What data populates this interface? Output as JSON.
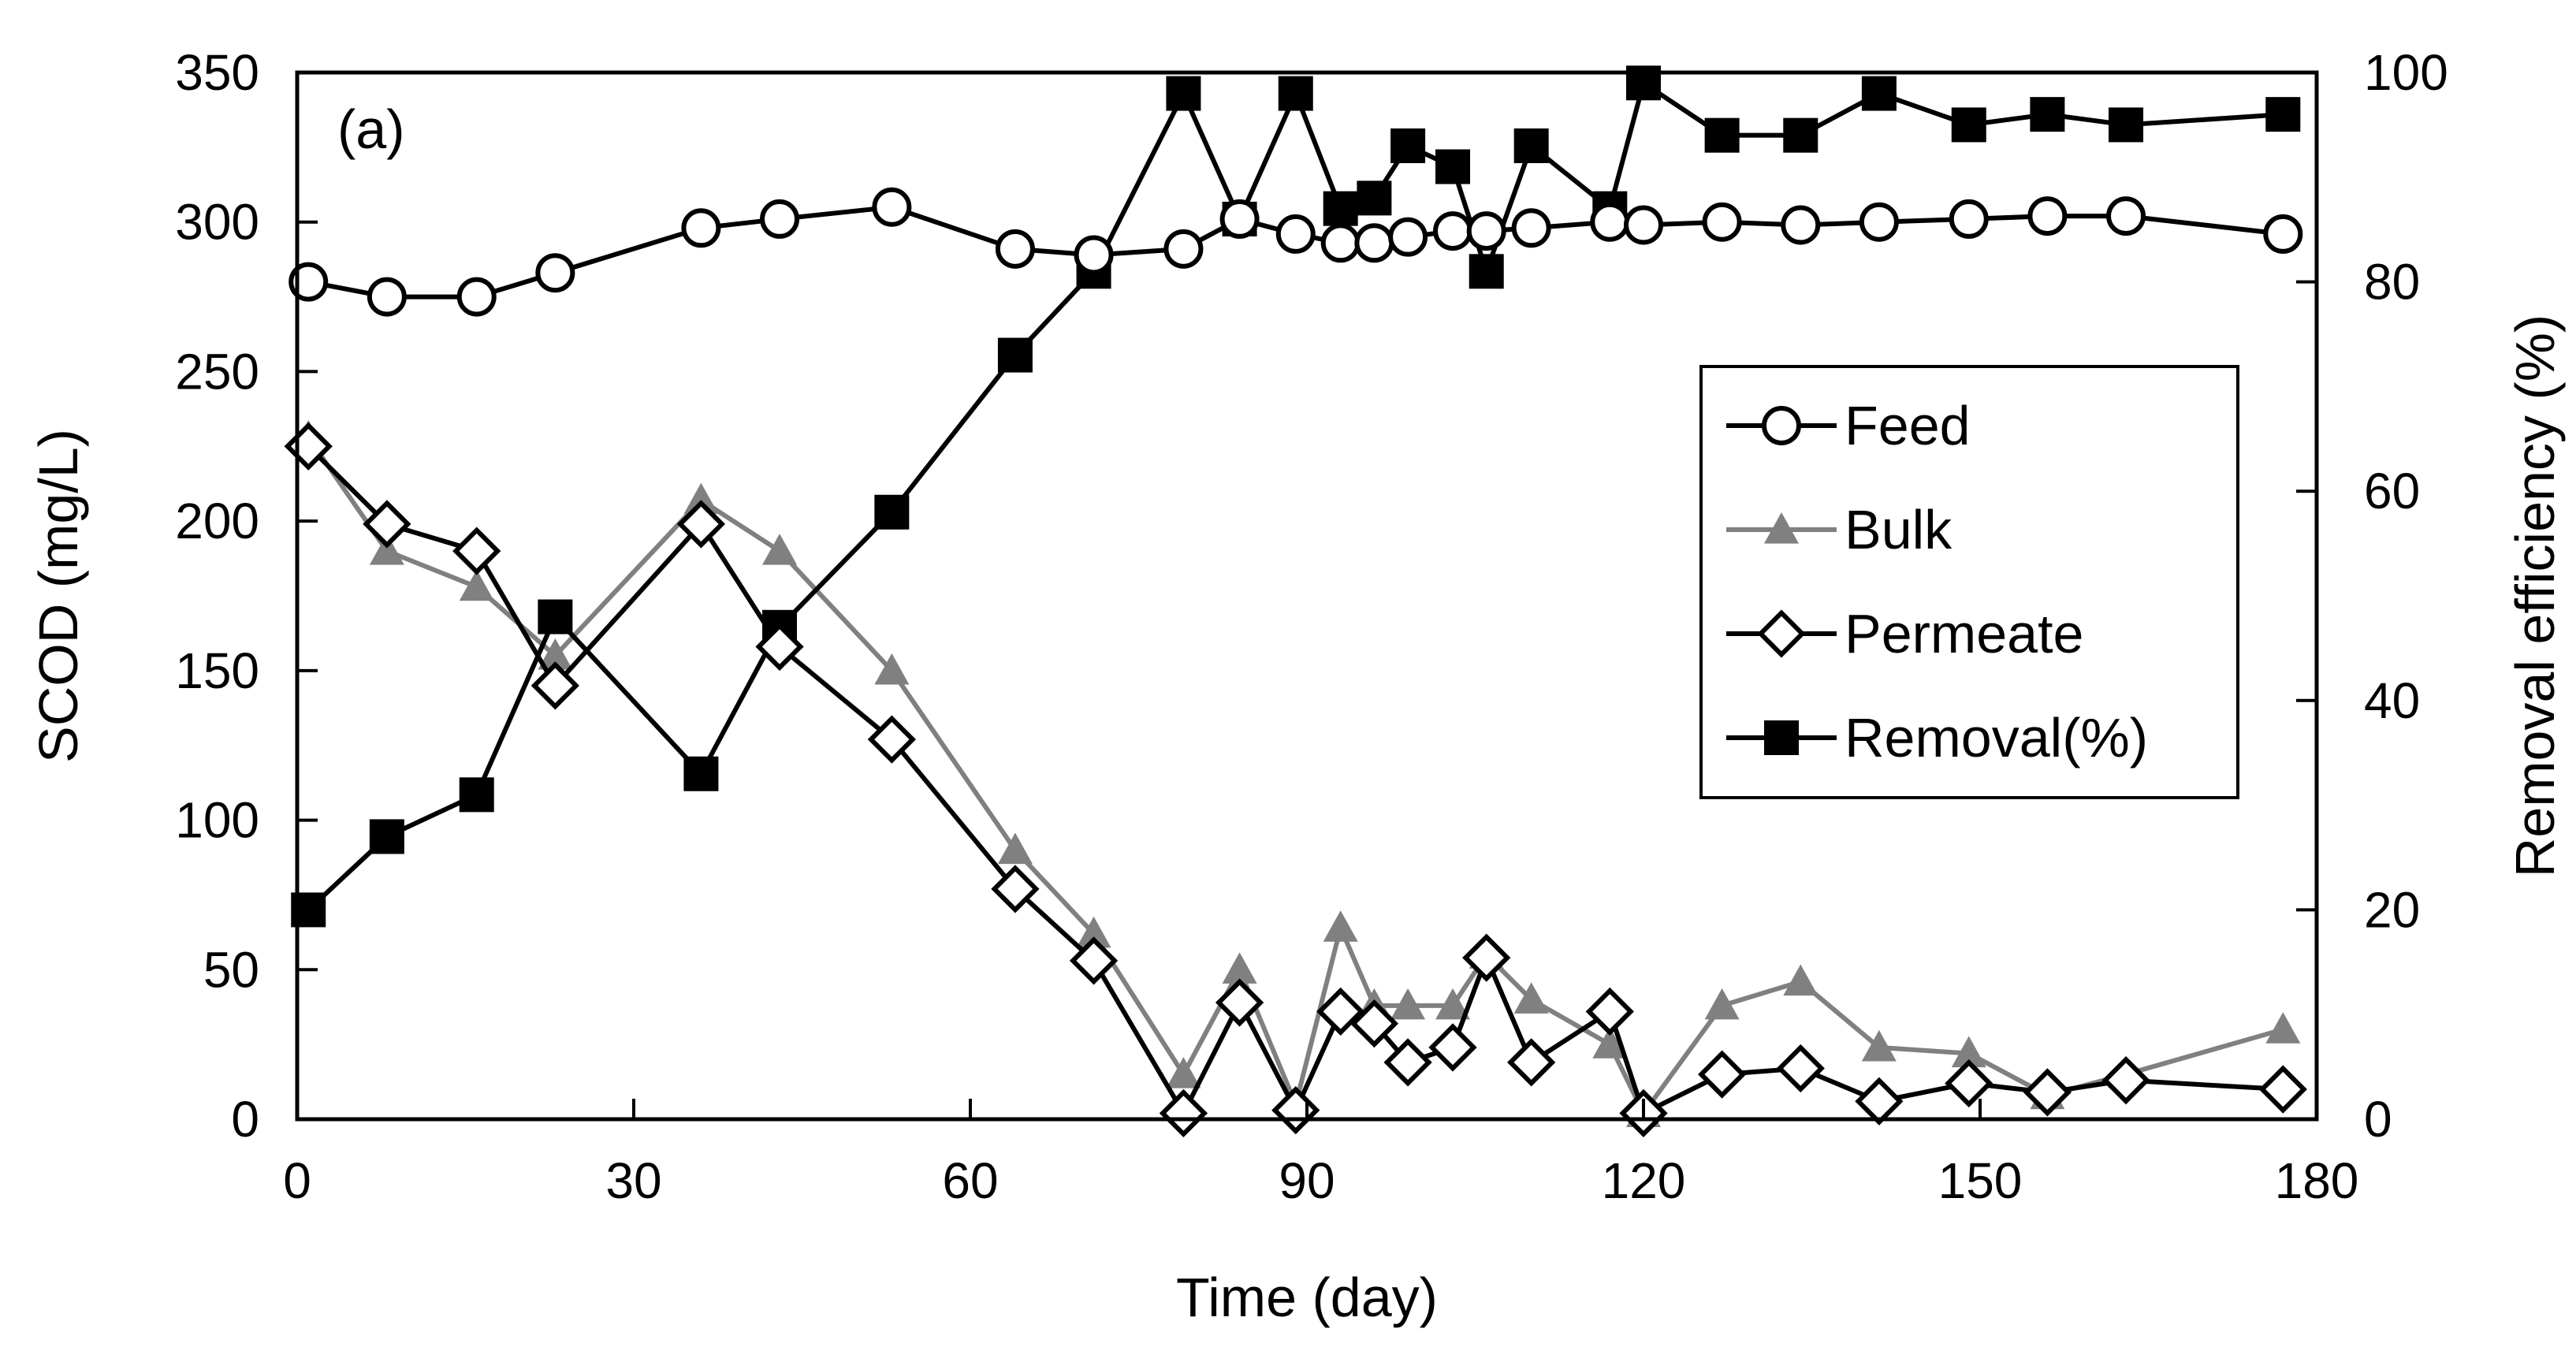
{
  "chart_data": {
    "type": "line",
    "panel_label": "(a)",
    "xlabel": "Time (day)",
    "ylabel": "SCOD (mg/L)",
    "y2label": "Removal efficiency (%)",
    "xlim": [
      0,
      180
    ],
    "ylim": [
      0,
      350
    ],
    "y2lim": [
      0,
      100
    ],
    "xticks": [
      "0",
      "30",
      "60",
      "90",
      "120",
      "150",
      "180"
    ],
    "yticks": [
      "0",
      "50",
      "100",
      "150",
      "200",
      "250",
      "300",
      "350"
    ],
    "y2ticks": [
      "0",
      "20",
      "40",
      "60",
      "80",
      "100"
    ],
    "grid": false,
    "legend_position": "center-right",
    "x": [
      1,
      8,
      16,
      23,
      36,
      43,
      53,
      64,
      71,
      79,
      84,
      89,
      93,
      96,
      99,
      103,
      106,
      110,
      117,
      120,
      127,
      134,
      141,
      149,
      156,
      163,
      177
    ],
    "series": [
      {
        "name": "Feed",
        "axis": "left",
        "marker": "open-circle",
        "color": "#000000",
        "values": [
          280,
          275,
          275,
          283,
          298,
          301,
          305,
          291,
          289,
          291,
          301,
          296,
          293,
          293,
          295,
          297,
          297,
          298,
          300,
          299,
          300,
          299,
          300,
          301,
          302,
          302,
          296
        ]
      },
      {
        "name": "Bulk",
        "axis": "left",
        "marker": "filled-triangle",
        "color": "#808080",
        "values": [
          228,
          190,
          178,
          155,
          207,
          190,
          150,
          90,
          62,
          15,
          50,
          5,
          64,
          38,
          38,
          38,
          55,
          40,
          25,
          2,
          38,
          46,
          24,
          22,
          8,
          15,
          30
        ]
      },
      {
        "name": "Permeate",
        "axis": "left",
        "marker": "open-diamond",
        "color": "#000000",
        "values": [
          225,
          199,
          190,
          145,
          199,
          158,
          127,
          77,
          53,
          2,
          39,
          3,
          36,
          32,
          19,
          24,
          54,
          19,
          36,
          2,
          15,
          17,
          6,
          12,
          9,
          13,
          10
        ]
      },
      {
        "name": "Removal(%)",
        "axis": "right",
        "marker": "filled-square",
        "color": "#000000",
        "values": [
          20,
          27,
          31,
          48,
          33,
          47,
          58,
          73,
          81,
          98,
          86,
          98,
          87,
          88,
          93,
          91,
          81,
          93,
          87,
          99,
          94,
          94,
          98,
          95,
          96,
          95,
          96
        ]
      }
    ]
  }
}
